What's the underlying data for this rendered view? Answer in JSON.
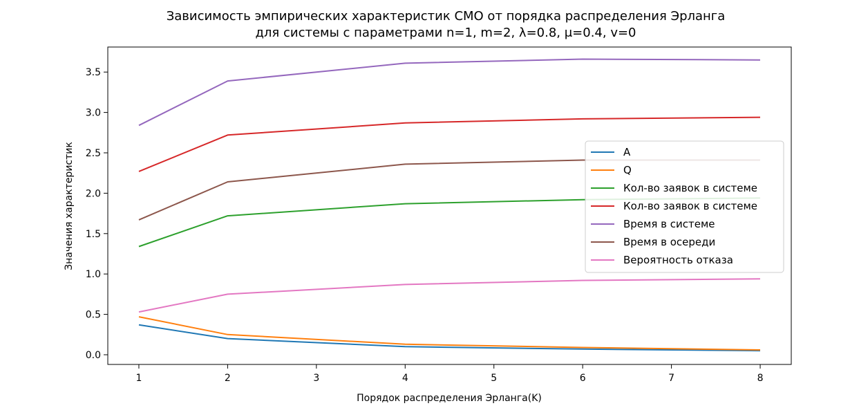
{
  "chart_data": {
    "type": "line",
    "title_line1": "Зависимость эмпирических характеристик СМО от порядка распределения Эрланга",
    "title_line2": "для системы с параметрами n=1, m=2, λ=0.8, μ=0.4, v=0",
    "xlabel": "Порядок распределения Эрланга(K)",
    "ylabel": "Значения характеристик",
    "xlim": [
      0.65,
      8.35
    ],
    "ylim": [
      -0.12,
      3.81
    ],
    "xticks": [
      "1",
      "2",
      "3",
      "4",
      "5",
      "6",
      "7",
      "8"
    ],
    "yticks": [
      "0.0",
      "0.5",
      "1.0",
      "1.5",
      "2.0",
      "2.5",
      "3.0",
      "3.5"
    ],
    "legend_position": "center-right",
    "x": [
      1,
      2,
      4,
      6,
      8
    ],
    "series": [
      {
        "name": "A",
        "color": "#1f77b4",
        "values": [
          0.37,
          0.2,
          0.1,
          0.07,
          0.05
        ]
      },
      {
        "name": "Q",
        "color": "#ff7f0e",
        "values": [
          0.47,
          0.25,
          0.13,
          0.09,
          0.06
        ]
      },
      {
        "name": "Кол-во заявок в системе",
        "color": "#2ca02c",
        "values": [
          1.34,
          1.72,
          1.87,
          1.92,
          1.94
        ]
      },
      {
        "name": "Кол-во заявок в системе",
        "color": "#d62728",
        "values": [
          2.27,
          2.72,
          2.87,
          2.92,
          2.94
        ]
      },
      {
        "name": "Время в системе",
        "color": "#9467bd",
        "values": [
          2.84,
          3.39,
          3.61,
          3.66,
          3.65
        ]
      },
      {
        "name": "Время в осереди",
        "color": "#8c564b",
        "values": [
          1.67,
          2.14,
          2.36,
          2.41,
          2.41
        ]
      },
      {
        "name": "Вероятность отказа",
        "color": "#e377c2",
        "values": [
          0.53,
          0.75,
          0.87,
          0.92,
          0.94
        ]
      }
    ]
  }
}
